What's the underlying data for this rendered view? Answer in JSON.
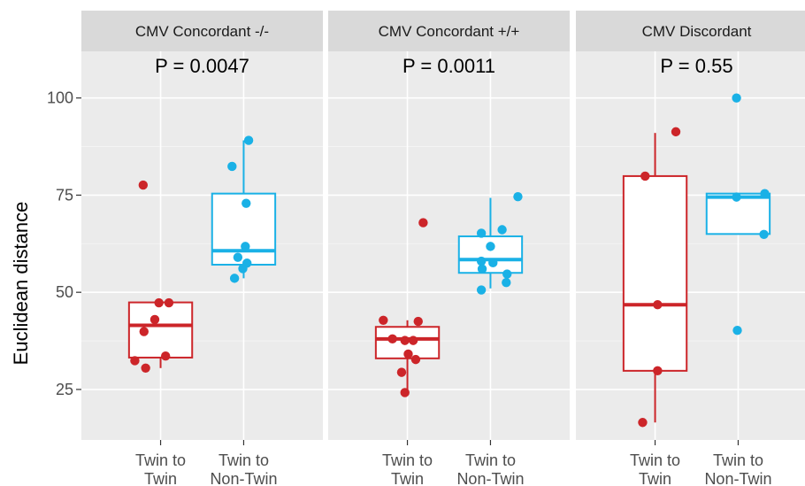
{
  "chart_data": {
    "type": "boxplot",
    "ylabel": "Euclidean distance",
    "xlabel": "",
    "ylim": [
      12,
      112
    ],
    "y_ticks": [
      25,
      50,
      75,
      100
    ],
    "y_tick_labels": [
      "25",
      "50",
      "75",
      "100"
    ],
    "grid": true,
    "legend": "none",
    "categories": [
      {
        "label_line1": "Twin to",
        "label_line2": "Twin",
        "color": "#CC2529"
      },
      {
        "label_line1": "Twin to",
        "label_line2": "Non-Twin",
        "color": "#1AB1E6"
      }
    ],
    "panels": [
      {
        "strip": "CMV Concordant -/-",
        "annotation": "P = 0.0047",
        "boxes": [
          {
            "min": 30.5,
            "q1": 33.2,
            "median": 41.5,
            "q3": 47.4,
            "max": 47.4,
            "points": [
              [
                -0.21,
                77.6
              ],
              [
                -0.02,
                47.3
              ],
              [
                0.1,
                47.3
              ],
              [
                -0.07,
                43.0
              ],
              [
                -0.2,
                39.9
              ],
              [
                0.06,
                33.6
              ],
              [
                -0.31,
                32.4
              ],
              [
                -0.18,
                30.5
              ]
            ]
          },
          {
            "min": 53.6,
            "q1": 57.1,
            "median": 60.7,
            "q3": 75.4,
            "max": 89.1,
            "points": [
              [
                0.06,
                89.1
              ],
              [
                -0.14,
                82.4
              ],
              [
                0.03,
                72.9
              ],
              [
                0.02,
                61.8
              ],
              [
                -0.07,
                59.0
              ],
              [
                0.04,
                57.5
              ],
              [
                -0.01,
                56.1
              ],
              [
                -0.11,
                53.6
              ]
            ]
          }
        ]
      },
      {
        "strip": "CMV Concordant +/+",
        "annotation": "P = 0.0011",
        "boxes": [
          {
            "min": 24.2,
            "q1": 33.0,
            "median": 38.0,
            "q3": 41.1,
            "max": 42.8,
            "points": [
              [
                0.19,
                67.9
              ],
              [
                -0.29,
                42.8
              ],
              [
                0.13,
                42.5
              ],
              [
                -0.18,
                38.0
              ],
              [
                -0.03,
                37.6
              ],
              [
                0.07,
                37.6
              ],
              [
                0.01,
                34.1
              ],
              [
                0.1,
                32.7
              ],
              [
                -0.07,
                29.4
              ],
              [
                -0.03,
                24.2
              ]
            ]
          },
          {
            "min": 51.0,
            "q1": 55.0,
            "median": 58.4,
            "q3": 64.4,
            "max": 74.3,
            "points": [
              [
                0.33,
                74.6
              ],
              [
                -0.11,
                65.2
              ],
              [
                0.14,
                66.1
              ],
              [
                0.0,
                61.8
              ],
              [
                -0.11,
                58.0
              ],
              [
                0.03,
                57.6
              ],
              [
                -0.1,
                56.0
              ],
              [
                0.2,
                54.7
              ],
              [
                0.19,
                52.5
              ],
              [
                -0.11,
                50.6
              ]
            ]
          }
        ]
      },
      {
        "strip": "CMV Discordant",
        "annotation": "P = 0.55",
        "boxes": [
          {
            "min": 16.5,
            "q1": 29.8,
            "median": 46.8,
            "q3": 79.9,
            "max": 91.0,
            "points": [
              [
                0.25,
                91.3
              ],
              [
                -0.12,
                79.9
              ],
              [
                0.03,
                46.8
              ],
              [
                0.03,
                29.8
              ],
              [
                -0.15,
                16.5
              ]
            ]
          },
          {
            "min": 65.0,
            "q1": 65.0,
            "median": 74.5,
            "q3": 75.4,
            "max": 75.4,
            "points": [
              [
                -0.02,
                100.0
              ],
              [
                -0.02,
                74.5
              ],
              [
                0.32,
                75.4
              ],
              [
                0.31,
                64.9
              ],
              [
                -0.01,
                40.2
              ]
            ]
          }
        ]
      }
    ]
  }
}
